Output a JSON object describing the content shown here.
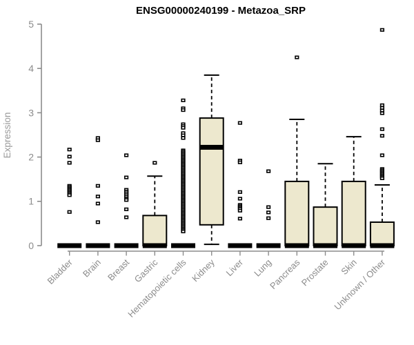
{
  "colors": {
    "background": "#ffffff",
    "box_fill": "#ede8ce",
    "box_border": "#000000",
    "median": "#000000",
    "whisker": "#000000",
    "outlier_stroke": "#000000",
    "outlier_fill": "#ffffff",
    "axis": "#8c8c8c",
    "tick_label": "#8c8c8c",
    "category_label": "#8c8c8c",
    "y_label": "#9a9a9a",
    "title": "#000000"
  },
  "chart_data": {
    "type": "boxplot",
    "title": "ENSG00000240199 - Metazoa_SRP",
    "xlabel": "",
    "ylabel": "Expression",
    "ylim": [
      0,
      5
    ],
    "yticks": [
      0,
      1,
      2,
      3,
      4,
      5
    ],
    "grid": false,
    "legend": "none",
    "categories": [
      "Bladder",
      "Brain",
      "Breast",
      "Gastric",
      "Hematopoietic cells",
      "Kidney",
      "Liver",
      "Lung",
      "Pancreas",
      "Prostate",
      "Skin",
      "Unknown / Other"
    ],
    "series": [
      {
        "name": "Bladder",
        "low": 0,
        "q1": 0,
        "median": 0,
        "q3": 0,
        "high": 0,
        "outliers": [
          2.17,
          2.01,
          1.87,
          1.35,
          1.32,
          1.29,
          1.26,
          1.23,
          1.2,
          1.17,
          1.14,
          0.76
        ]
      },
      {
        "name": "Brain",
        "low": 0,
        "q1": 0,
        "median": 0,
        "q3": 0,
        "high": 0,
        "outliers": [
          2.43,
          2.38,
          1.35,
          1.11,
          0.95,
          0.53
        ]
      },
      {
        "name": "Breast",
        "low": 0,
        "q1": 0,
        "median": 0,
        "q3": 0,
        "high": 0,
        "outliers": [
          2.04,
          1.54,
          1.26,
          1.22,
          1.18,
          1.14,
          1.1,
          1.06,
          1.03,
          0.82,
          0.64
        ]
      },
      {
        "name": "Gastric",
        "low": 0,
        "q1": 0,
        "median": 0,
        "q3": 0.68,
        "high": 1.57,
        "outliers": [
          1.87
        ]
      },
      {
        "name": "Hematopoietic cells",
        "low": 0,
        "q1": 0,
        "median": 0,
        "q3": 0,
        "high": 0,
        "outliers": [
          3.28,
          3.1,
          3.06,
          2.74,
          2.7,
          2.66,
          2.54,
          2.49,
          2.43,
          2.15,
          2.12,
          2.09,
          2.06,
          2.03,
          2.0,
          1.97,
          1.94,
          1.91,
          1.88,
          1.85,
          1.82,
          1.79,
          1.76,
          1.73,
          1.7,
          1.67,
          1.64,
          1.61,
          1.58,
          1.55,
          1.52,
          1.49,
          1.46,
          1.43,
          1.4,
          1.37,
          1.34,
          1.31,
          1.28,
          1.25,
          1.22,
          1.19,
          1.16,
          1.13,
          1.1,
          1.07,
          1.04,
          1.01,
          0.98,
          0.95,
          0.92,
          0.89,
          0.86,
          0.83,
          0.8,
          0.77,
          0.74,
          0.71,
          0.68,
          0.65,
          0.62,
          0.59,
          0.56,
          0.53,
          0.5,
          0.47,
          0.44,
          0.41,
          0.38,
          0.35,
          0.32
        ]
      },
      {
        "name": "Kidney",
        "low": 0.03,
        "q1": 0.47,
        "median": 2.22,
        "q3": 2.88,
        "high": 3.85,
        "outliers": []
      },
      {
        "name": "Liver",
        "low": 0,
        "q1": 0,
        "median": 0,
        "q3": 0,
        "high": 0,
        "outliers": [
          2.77,
          1.92,
          1.88,
          1.21,
          1.06,
          0.92,
          0.89,
          0.86,
          0.83,
          0.79,
          0.61
        ]
      },
      {
        "name": "Lung",
        "low": 0,
        "q1": 0,
        "median": 0,
        "q3": 0,
        "high": 0,
        "outliers": [
          1.68,
          0.87,
          0.75,
          0.62
        ]
      },
      {
        "name": "Pancreas",
        "low": 0,
        "q1": 0,
        "median": 0,
        "q3": 1.45,
        "high": 2.85,
        "outliers": [
          4.25
        ]
      },
      {
        "name": "Prostate",
        "low": 0,
        "q1": 0,
        "median": 0,
        "q3": 0.87,
        "high": 1.85,
        "outliers": []
      },
      {
        "name": "Skin",
        "low": 0,
        "q1": 0,
        "median": 0,
        "q3": 1.45,
        "high": 2.46,
        "outliers": []
      },
      {
        "name": "Unknown / Other",
        "low": 0,
        "q1": 0,
        "median": 0,
        "q3": 0.53,
        "high": 1.37,
        "outliers": [
          4.87,
          3.17,
          3.11,
          3.05,
          2.99,
          2.63,
          2.48,
          2.04,
          1.73,
          1.7,
          1.67,
          1.64,
          1.61,
          1.58,
          1.55,
          1.52
        ]
      }
    ]
  }
}
